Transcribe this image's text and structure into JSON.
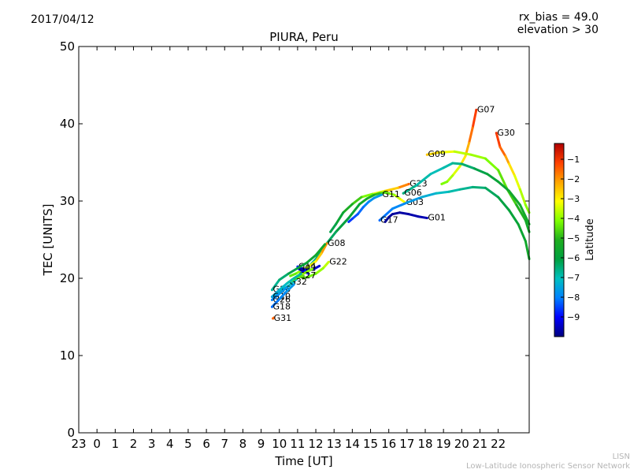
{
  "header": {
    "date": "2017/04/12",
    "rx_bias": "rx_bias = 49.0",
    "elevation": "elevation > 30"
  },
  "footer": {
    "line1": "LISN",
    "line2": "Low-Latitude Ionospheric Sensor Network"
  },
  "colors": {
    "colormap": [
      "#00007f",
      "#0000ff",
      "#0080ff",
      "#00c0c0",
      "#00a040",
      "#1fae1f",
      "#7fff00",
      "#ffff00",
      "#ffa500",
      "#ff4000",
      "#b00000"
    ]
  },
  "chart_data": {
    "type": "line",
    "title": "PIURA, Peru",
    "xlabel": "Time [UT]",
    "ylabel": "TEC [UNITS]",
    "xlim": [
      23,
      47.7
    ],
    "ylim": [
      0,
      50
    ],
    "x_ticks": [
      23,
      24,
      25,
      26,
      27,
      28,
      29,
      30,
      31,
      32,
      33,
      34,
      35,
      36,
      37,
      38,
      39,
      40,
      41,
      42,
      43,
      44,
      45,
      46
    ],
    "x_tick_labels": [
      "23",
      "0",
      "1",
      "2",
      "3",
      "4",
      "5",
      "6",
      "7",
      "8",
      "9",
      "10",
      "11",
      "12",
      "13",
      "14",
      "15",
      "16",
      "17",
      "18",
      "19",
      "20",
      "21",
      "22"
    ],
    "y_ticks": [
      0,
      10,
      20,
      30,
      40,
      50
    ],
    "grid": false,
    "colorbar": {
      "label": "Latitude",
      "range": [
        -10,
        -0.2
      ],
      "ticks": [
        -9,
        -8,
        -7,
        -6,
        -5,
        -4,
        -3,
        -2,
        -1
      ]
    },
    "series": [
      {
        "name": "G07",
        "points": [
          [
            44.8,
            41.8
          ],
          [
            44.6,
            39.5
          ],
          [
            44.4,
            37.5
          ],
          [
            44.2,
            35.8
          ],
          [
            43.9,
            34.5
          ],
          [
            43.5,
            33.3
          ],
          [
            43.2,
            32.5
          ],
          [
            42.9,
            32.2
          ]
        ],
        "latitudes": [
          -1.0,
          -1.3,
          -2.0,
          -2.6,
          -3.2,
          -3.6,
          -4.0,
          -4.3
        ]
      },
      {
        "name": "G30",
        "points": [
          [
            45.9,
            38.8
          ],
          [
            46.1,
            37.0
          ],
          [
            46.4,
            35.8
          ],
          [
            46.6,
            34.8
          ],
          [
            46.9,
            33.3
          ],
          [
            47.2,
            31.5
          ],
          [
            47.5,
            29.5
          ],
          [
            47.7,
            28.5
          ]
        ],
        "latitudes": [
          -1.0,
          -1.3,
          -1.8,
          -2.5,
          -3.1,
          -3.6,
          -3.9,
          -4.2
        ]
      },
      {
        "name": "G09",
        "points": [
          [
            42.1,
            36.0
          ],
          [
            42.8,
            36.3
          ],
          [
            43.6,
            36.4
          ],
          [
            44.5,
            36.0
          ],
          [
            45.3,
            35.5
          ],
          [
            46.0,
            34.0
          ],
          [
            46.5,
            31.5
          ],
          [
            47.0,
            29.5
          ],
          [
            47.5,
            27.5
          ],
          [
            47.7,
            26.0
          ]
        ],
        "latitudes": [
          -2.5,
          -3.0,
          -3.5,
          -3.8,
          -4.0,
          -4.3,
          -4.6,
          -4.9,
          -5.3,
          -5.6
        ]
      },
      {
        "name": "G23",
        "points": [
          [
            41.1,
            32.2
          ],
          [
            40.5,
            31.7
          ],
          [
            39.8,
            31.3
          ],
          [
            39.1,
            30.9
          ],
          [
            38.5,
            30.5
          ],
          [
            38.0,
            29.6
          ],
          [
            37.5,
            28.5
          ],
          [
            37.1,
            27.0
          ],
          [
            36.8,
            26.0
          ]
        ],
        "latitudes": [
          -1.5,
          -2.2,
          -3.0,
          -3.8,
          -4.5,
          -5.0,
          -5.5,
          -6.0,
          -6.3
        ]
      },
      {
        "name": "G03",
        "points": [
          [
            40.9,
            29.8
          ],
          [
            40.6,
            30.3
          ],
          [
            40.3,
            30.8
          ],
          [
            40.0,
            31.0
          ],
          [
            39.8,
            31.1
          ],
          [
            39.5,
            31.0
          ],
          [
            39.2,
            30.8
          ],
          [
            38.8,
            30.3
          ],
          [
            38.4,
            29.6
          ],
          [
            37.8,
            27.8
          ],
          [
            37.1,
            26.0
          ],
          [
            36.5,
            24.2
          ],
          [
            36.0,
            22.5
          ],
          [
            35.5,
            21.2
          ],
          [
            35.0,
            20.0
          ],
          [
            34.5,
            19.0
          ],
          [
            34.0,
            18.3
          ],
          [
            33.6,
            17.6
          ]
        ],
        "latitudes": [
          -3.0,
          -3.3,
          -3.8,
          -4.2,
          -4.5,
          -4.8,
          -5.0,
          -5.3,
          -5.6,
          -5.9,
          -6.2,
          -6.4,
          -6.6,
          -6.8,
          -7.0,
          -7.1,
          -7.2,
          -7.3
        ]
      },
      {
        "name": "G17",
        "points": [
          [
            39.5,
            27.5
          ],
          [
            40.2,
            29.0
          ],
          [
            41.0,
            29.8
          ],
          [
            41.8,
            30.5
          ],
          [
            42.6,
            31.0
          ],
          [
            43.3,
            31.2
          ],
          [
            43.9,
            31.5
          ],
          [
            44.6,
            31.8
          ],
          [
            45.3,
            31.7
          ],
          [
            46.0,
            30.5
          ],
          [
            46.6,
            28.8
          ],
          [
            47.1,
            27.0
          ],
          [
            47.5,
            24.8
          ],
          [
            47.7,
            22.5
          ]
        ],
        "latitudes": [
          -8.2,
          -8.0,
          -7.8,
          -7.5,
          -7.2,
          -7.0,
          -6.8,
          -6.6,
          -6.4,
          -6.2,
          -6.0,
          -5.8,
          -5.6,
          -5.4
        ]
      },
      {
        "name": "G06",
        "points": [
          [
            40.8,
            31.0
          ],
          [
            41.5,
            32.0
          ],
          [
            42.3,
            33.5
          ],
          [
            43.0,
            34.3
          ],
          [
            43.5,
            34.9
          ],
          [
            44.0,
            34.8
          ],
          [
            44.7,
            34.2
          ],
          [
            45.4,
            33.5
          ],
          [
            46.0,
            32.5
          ],
          [
            46.6,
            31.3
          ],
          [
            47.2,
            29.5
          ],
          [
            47.7,
            27.0
          ]
        ],
        "latitudes": [
          -6.5,
          -6.8,
          -7.0,
          -7.0,
          -6.8,
          -6.6,
          -6.3,
          -6.0,
          -5.8,
          -5.6,
          -5.5,
          -5.4
        ]
      },
      {
        "name": "G11",
        "points": [
          [
            39.6,
            30.8
          ],
          [
            39.2,
            30.4
          ],
          [
            38.9,
            29.9
          ],
          [
            38.6,
            29.2
          ],
          [
            38.3,
            28.3
          ],
          [
            38.0,
            27.7
          ],
          [
            37.8,
            27.3
          ]
        ],
        "latitudes": [
          -7.5,
          -7.7,
          -7.9,
          -8.1,
          -8.3,
          -8.5,
          -8.7
        ]
      },
      {
        "name": "G01",
        "points": [
          [
            42.1,
            27.8
          ],
          [
            41.6,
            28.0
          ],
          [
            41.1,
            28.3
          ],
          [
            40.6,
            28.5
          ],
          [
            40.2,
            28.3
          ],
          [
            40.0,
            27.9
          ],
          [
            39.8,
            27.3
          ]
        ],
        "latitudes": [
          -9.6,
          -9.6,
          -9.7,
          -9.7,
          -9.8,
          -9.8,
          -9.9
        ]
      },
      {
        "name": "G08",
        "points": [
          [
            36.6,
            24.5
          ],
          [
            36.3,
            23.2
          ],
          [
            36.0,
            22.2
          ],
          [
            35.6,
            21.5
          ],
          [
            35.2,
            21.0
          ],
          [
            34.9,
            20.6
          ],
          [
            34.6,
            20.3
          ]
        ],
        "latitudes": [
          -1.8,
          -2.3,
          -2.8,
          -3.3,
          -3.8,
          -4.2,
          -4.5
        ]
      },
      {
        "name": "G22",
        "points": [
          [
            36.7,
            22.1
          ],
          [
            36.4,
            21.3
          ],
          [
            36.0,
            20.6
          ],
          [
            35.6,
            20.2
          ],
          [
            35.3,
            20.0
          ]
        ],
        "latitudes": [
          -3.5,
          -3.8,
          -4.1,
          -4.4,
          -4.6
        ]
      },
      {
        "name": "G14",
        "points": [
          [
            35.0,
            21.5
          ],
          [
            35.3,
            21.2
          ],
          [
            35.6,
            21.0
          ],
          [
            35.9,
            21.2
          ],
          [
            36.2,
            21.6
          ]
        ],
        "latitudes": [
          -8.8,
          -8.9,
          -9.1,
          -9.3,
          -9.5
        ]
      },
      {
        "name": "G02",
        "points": [
          [
            35.0,
            21.3
          ],
          [
            35.3,
            20.9
          ],
          [
            35.6,
            20.6
          ]
        ],
        "latitudes": [
          -9.0,
          -9.1,
          -9.2
        ]
      },
      {
        "name": "G27",
        "points": [
          [
            35.0,
            20.3
          ],
          [
            35.4,
            20.7
          ],
          [
            35.8,
            21.2
          ]
        ],
        "latitudes": [
          -3.6,
          -3.9,
          -4.3
        ]
      },
      {
        "name": "G32",
        "points": [
          [
            34.5,
            19.5
          ],
          [
            34.9,
            20.0
          ],
          [
            35.3,
            20.3
          ]
        ],
        "latitudes": [
          -4.0,
          -4.3,
          -4.6
        ]
      },
      {
        "name": "G16",
        "points": [
          [
            33.6,
            18.5
          ],
          [
            34.0,
            19.8
          ],
          [
            34.5,
            20.6
          ],
          [
            35.0,
            21.3
          ],
          [
            35.5,
            22.0
          ],
          [
            36.0,
            23.0
          ],
          [
            36.5,
            24.4
          ]
        ],
        "latitudes": [
          -6.8,
          -6.6,
          -6.3,
          -6.0,
          -5.8,
          -5.6,
          -5.4
        ]
      },
      {
        "name": "G10",
        "points": [
          [
            33.6,
            17.6
          ],
          [
            34.0,
            18.5
          ],
          [
            34.4,
            19.3
          ],
          [
            34.8,
            20.0
          ],
          [
            35.2,
            20.6
          ]
        ],
        "latitudes": [
          -7.5,
          -7.3,
          -7.1,
          -6.9,
          -6.7
        ]
      },
      {
        "name": "G26",
        "points": [
          [
            33.6,
            17.2
          ],
          [
            34.0,
            18.0
          ],
          [
            34.4,
            18.8
          ]
        ],
        "latitudes": [
          -8.0,
          -7.8,
          -7.6
        ]
      },
      {
        "name": "G18",
        "points": [
          [
            33.6,
            16.3
          ],
          [
            34.0,
            17.3
          ],
          [
            34.4,
            18.3
          ],
          [
            34.8,
            19.2
          ]
        ],
        "latitudes": [
          -8.2,
          -8.0,
          -7.8,
          -7.6
        ]
      },
      {
        "name": "G31",
        "points": [
          [
            33.65,
            14.8
          ],
          [
            33.7,
            14.9
          ]
        ],
        "latitudes": [
          -1.5,
          -1.6
        ]
      }
    ]
  }
}
